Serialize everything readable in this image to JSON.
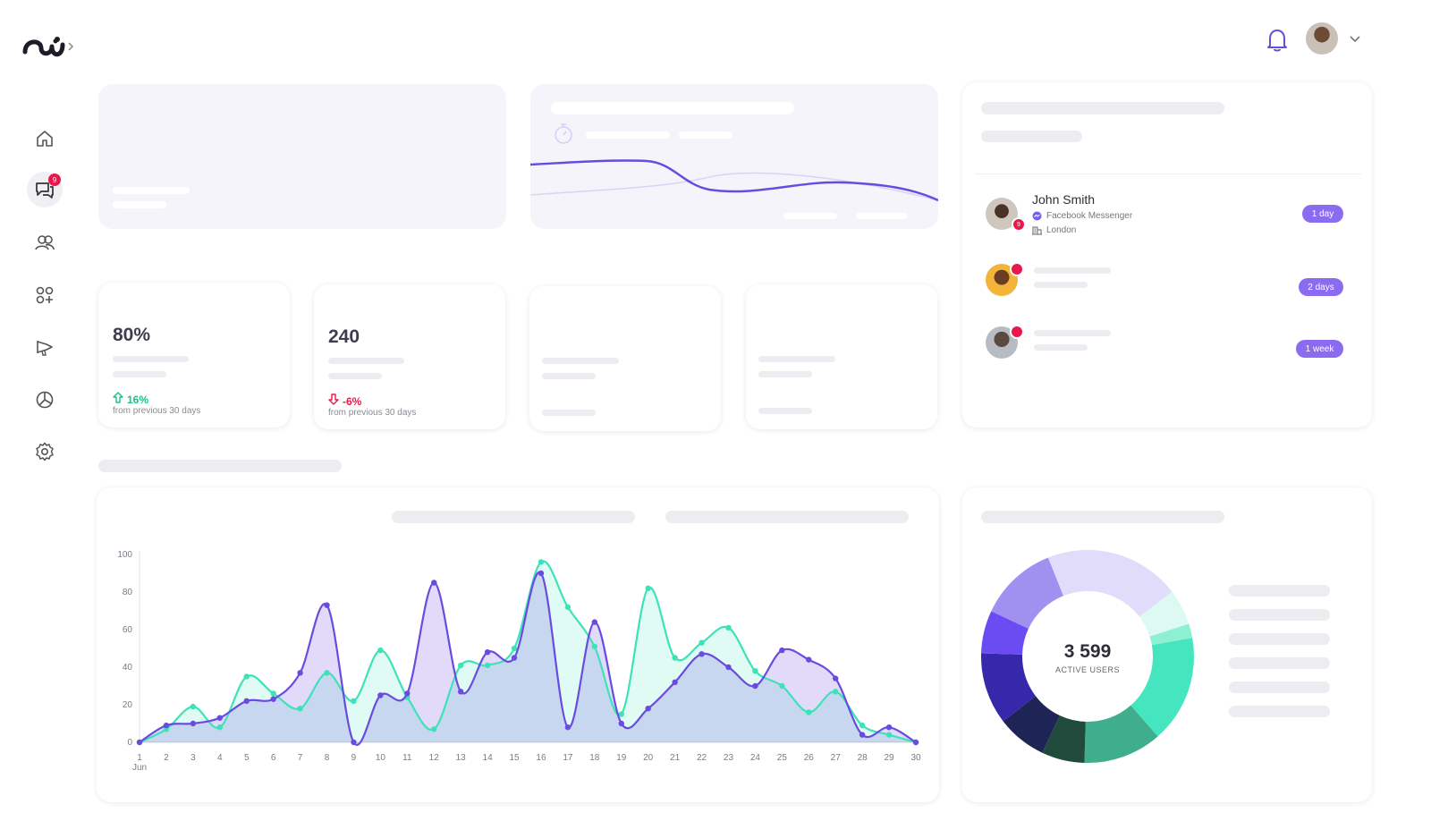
{
  "header": {
    "logo_icon": "brand-logo-icon",
    "bell_icon": "bell-icon",
    "chevron_icon": "chevron-down-icon"
  },
  "sidebar": {
    "items": [
      {
        "name": "home",
        "icon": "home-icon"
      },
      {
        "name": "conversations",
        "icon": "chat-icon",
        "badge": "9"
      },
      {
        "name": "contacts",
        "icon": "users-icon"
      },
      {
        "name": "apps",
        "icon": "apps-icon"
      },
      {
        "name": "campaigns",
        "icon": "megaphone-icon"
      },
      {
        "name": "reports",
        "icon": "pie-icon"
      },
      {
        "name": "settings",
        "icon": "gear-icon"
      }
    ]
  },
  "stats": [
    {
      "value": "80%",
      "change": "16%",
      "note": "from previous 30 days",
      "direction": "up"
    },
    {
      "value": "240",
      "change": "-6%",
      "note": "from previous 30 days",
      "direction": "down"
    }
  ],
  "contacts": [
    {
      "name": "John Smith",
      "channel": "Facebook Messenger",
      "location": "London",
      "badge": "9",
      "time": "1 day"
    },
    {
      "time": "2 days"
    },
    {
      "time": "1 week"
    }
  ],
  "donut": {
    "total": "3 599",
    "label": "ACTIVE USERS",
    "segments": [
      {
        "value": 19,
        "color": "#e2dcfb"
      },
      {
        "value": 5,
        "color": "#dcfaf1"
      },
      {
        "value": 2,
        "color": "#8ef0d3"
      },
      {
        "value": 15,
        "color": "#45e6bf"
      },
      {
        "value": 11,
        "color": "#3fae8c"
      },
      {
        "value": 6,
        "color": "#1f4a3c"
      },
      {
        "value": 7,
        "color": "#1e2556"
      },
      {
        "value": 10,
        "color": "#3627ab"
      },
      {
        "value": 6,
        "color": "#6b4cf3"
      },
      {
        "value": 11,
        "color": "#a090f0"
      }
    ]
  },
  "colors": {
    "purple": "#6a4be0",
    "teal": "#3de3b8",
    "red": "#e8194a",
    "green": "#19c28a"
  },
  "chart_data": {
    "type": "area",
    "x": [
      "1",
      "2",
      "3",
      "4",
      "5",
      "6",
      "7",
      "8",
      "9",
      "10",
      "11",
      "12",
      "13",
      "14",
      "15",
      "16",
      "17",
      "18",
      "19",
      "20",
      "21",
      "22",
      "23",
      "24",
      "25",
      "26",
      "27",
      "28",
      "29",
      "30"
    ],
    "x_sublabel": "Jun",
    "ylim": [
      0,
      100
    ],
    "yticks": [
      0,
      20,
      40,
      60,
      80,
      100
    ],
    "series": [
      {
        "color": "#3de3b8",
        "values": [
          0,
          7,
          19,
          8,
          35,
          26,
          18,
          37,
          22,
          49,
          24,
          7,
          41,
          41,
          50,
          96,
          72,
          51,
          15,
          82,
          45,
          53,
          61,
          38,
          30,
          16,
          27,
          9,
          4,
          0
        ]
      },
      {
        "color": "#6a4be0",
        "values": [
          0,
          9,
          10,
          13,
          22,
          23,
          37,
          73,
          0,
          25,
          26,
          85,
          27,
          48,
          45,
          90,
          8,
          64,
          10,
          18,
          32,
          47,
          40,
          30,
          49,
          44,
          34,
          4,
          8,
          0
        ]
      }
    ]
  }
}
